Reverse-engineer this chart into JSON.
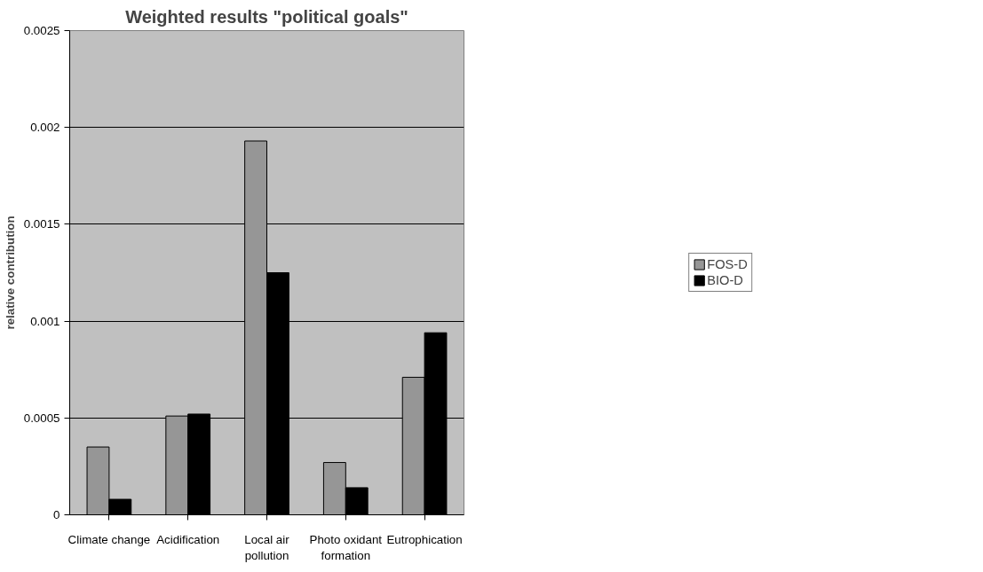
{
  "chart_data": {
    "type": "bar",
    "title": "Weighted results \"political goals\"",
    "ylabel": "relative contribution",
    "categories": [
      "Climate change",
      "Acidification",
      "Local air pollution",
      "Photo oxidant formation",
      "Eutrophication"
    ],
    "series": [
      {
        "name": "FOS-D",
        "color": "#969696",
        "values": [
          0.00035,
          0.00051,
          0.00193,
          0.00027,
          0.00071
        ]
      },
      {
        "name": "BIO-D",
        "color": "#000000",
        "values": [
          8e-05,
          0.00052,
          0.00125,
          0.00014,
          0.00094
        ]
      }
    ],
    "ylim": [
      0,
      0.0025
    ],
    "yticks": [
      0,
      0.0005,
      0.001,
      0.0015,
      0.002,
      0.0025
    ],
    "grid": "y",
    "legend": "right"
  }
}
